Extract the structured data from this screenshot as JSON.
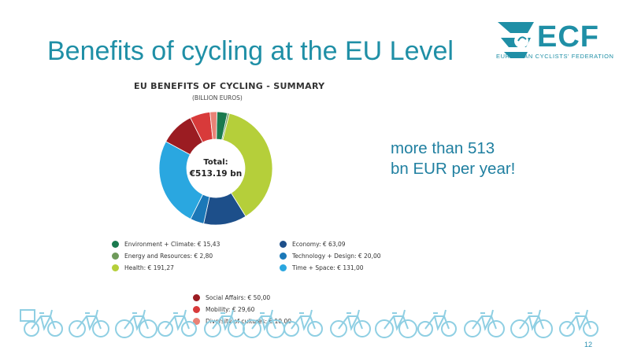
{
  "slide": {
    "title": "Benefits of cycling at the EU Level",
    "page_number": "12"
  },
  "logo": {
    "name": "ECF",
    "subtitle": "EUROPEAN CYCLISTS' FEDERATION"
  },
  "callout": {
    "line1": "more than 513",
    "line2": "bn EUR per year!"
  },
  "chart_data": {
    "type": "pie",
    "donut": true,
    "title": "EU BENEFITS OF CYCLING - SUMMARY",
    "subtitle": "(BILLION EUROS)",
    "center_label_line1": "Total:",
    "center_label_line2": "€513.19 bn",
    "legend_columns": [
      [
        {
          "label": "Environment + Climate: € 15,43",
          "name": "Environment + Climate",
          "value": 15.43,
          "color": "#1a7a4e"
        },
        {
          "label": "Energy and Resources: € 2,80",
          "name": "Energy and Resources",
          "value": 2.8,
          "color": "#6e9a5a"
        },
        {
          "label": "Health: € 191,27",
          "name": "Health",
          "value": 191.27,
          "color": "#b5cf3a"
        }
      ],
      [
        {
          "label": "Economy: € 63,09",
          "name": "Economy",
          "value": 63.09,
          "color": "#1d4f8a"
        },
        {
          "label": "Technology + Design: € 20,00",
          "name": "Technology + Design",
          "value": 20.0,
          "color": "#1b78b8"
        },
        {
          "label": "Time + Space: € 131,00",
          "name": "Time + Space",
          "value": 131.0,
          "color": "#2aa7e0"
        }
      ],
      [
        {
          "label": "Social Affairs: € 50,00",
          "name": "Social Affairs",
          "value": 50.0,
          "color": "#9b1c22"
        },
        {
          "label": "Mobility: € 29,60",
          "name": "Mobility",
          "value": 29.6,
          "color": "#d83a3a"
        },
        {
          "label": "Diversity of cultures: € 10,00",
          "name": "Diversity of cultures",
          "value": 10.0,
          "color": "#e98276"
        }
      ]
    ],
    "slice_order": [
      "Environment + Climate",
      "Energy and Resources",
      "Health",
      "Economy",
      "Technology + Design",
      "Time + Space",
      "Social Affairs",
      "Mobility",
      "Diversity of cultures"
    ]
  },
  "colors": {
    "accent": "#1f8fa6",
    "callout": "#1f7fa0",
    "bikes": "#8fcfe3"
  }
}
